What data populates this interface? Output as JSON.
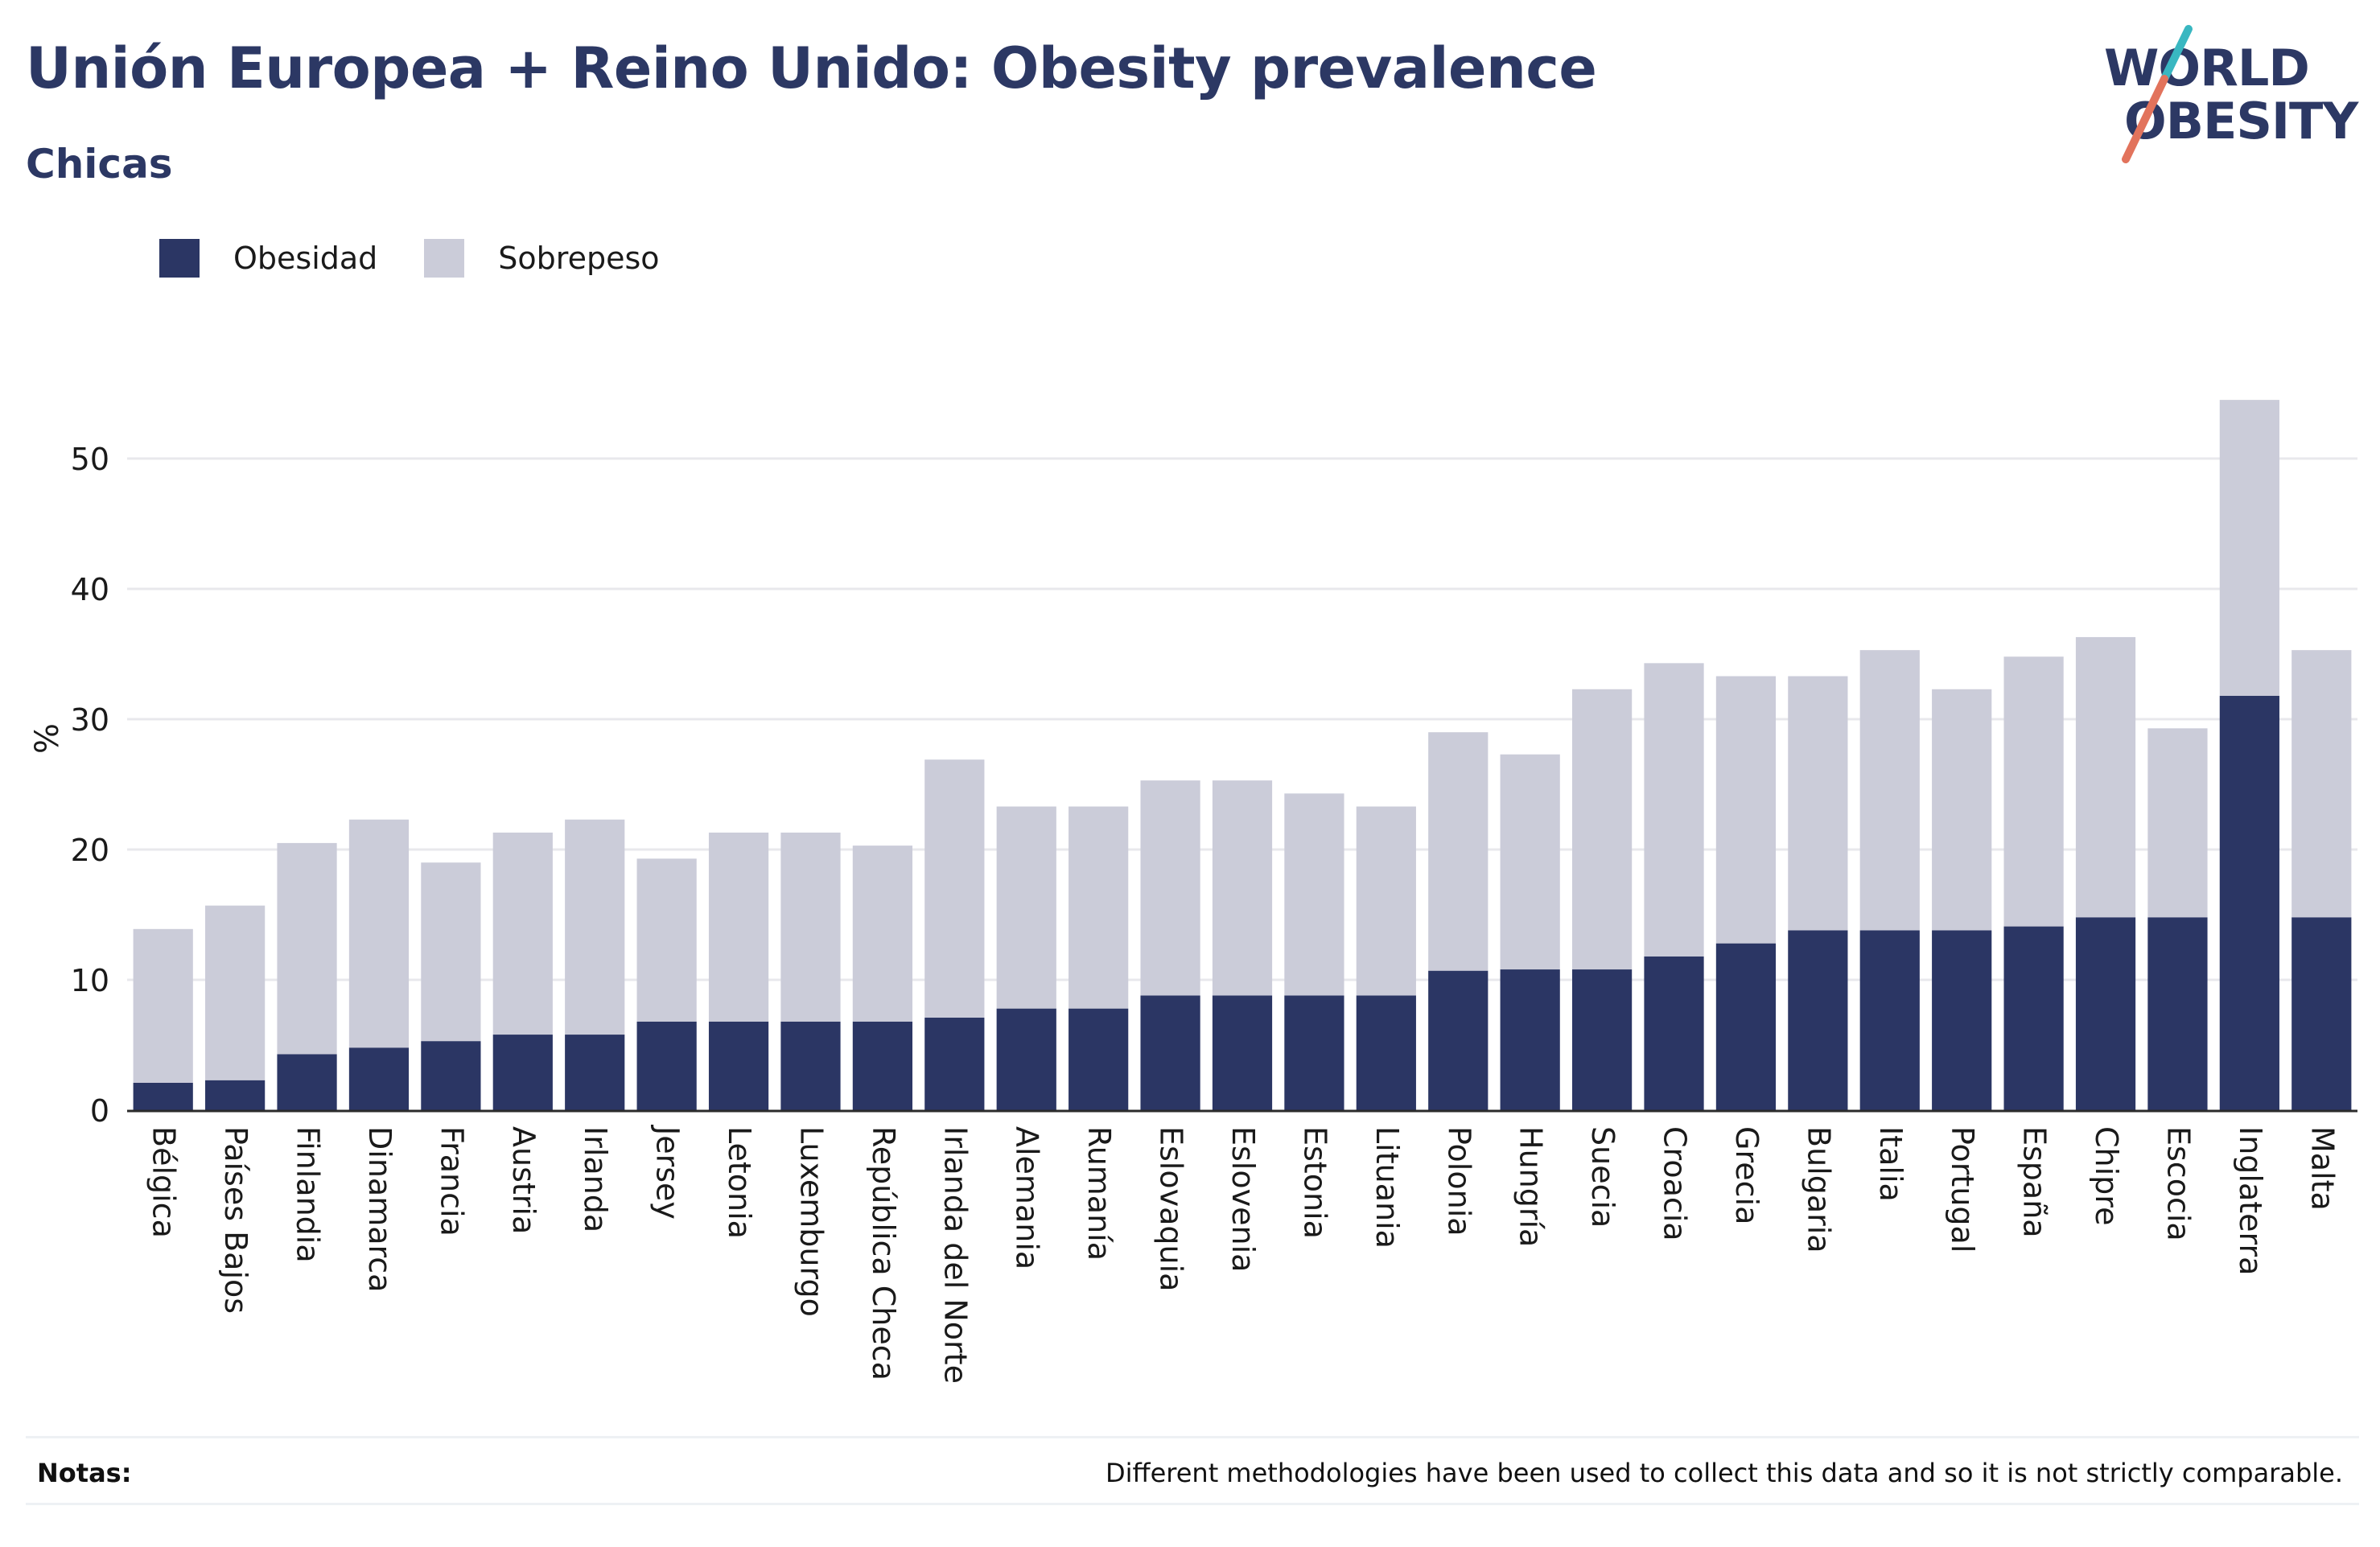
{
  "title": "Unión Europea + Reino Unido: Obesity prevalence",
  "subtitle": "Chicas",
  "logo": {
    "line1": "WORLD",
    "line2": "OBESITY"
  },
  "notes": {
    "label": "Notas:",
    "text": "Different methodologies have been used to collect this data and so it is not strictly comparable."
  },
  "colors": {
    "obesity": "#2b3664",
    "overweight": "#cbccd9",
    "title": "#2c3864",
    "grid": "#e8e8ec",
    "logo_teal": "#39b7c1",
    "logo_coral": "#e2735c"
  },
  "chart_data": {
    "type": "bar",
    "stacked": true,
    "ylabel": "%",
    "xlabel": "",
    "ylim": [
      0,
      55
    ],
    "yticks": [
      0,
      10,
      20,
      30,
      40,
      50
    ],
    "grid": true,
    "legend_position": "top-left",
    "categories": [
      "Bélgica",
      "Países Bajos",
      "Finlandia",
      "Dinamarca",
      "Francia",
      "Austria",
      "Irlanda",
      "Jersey",
      "Letonia",
      "Luxemburgo",
      "República Checa",
      "Irlanda del Norte",
      "Alemania",
      "Rumanía",
      "Eslovaquia",
      "Eslovenia",
      "Estonia",
      "Lituania",
      "Polonia",
      "Hungría",
      "Suecia",
      "Croacia",
      "Grecia",
      "Bulgaria",
      "Italia",
      "Portugal",
      "España",
      "Chipre",
      "Escocia",
      "Inglaterra",
      "Malta"
    ],
    "series": [
      {
        "name": "Obesidad",
        "values": [
          2.1,
          2.3,
          4.3,
          4.8,
          5.3,
          5.8,
          5.8,
          6.8,
          6.8,
          6.8,
          6.8,
          7.1,
          7.8,
          7.8,
          8.8,
          8.8,
          8.8,
          8.8,
          10.7,
          10.8,
          10.8,
          11.8,
          12.8,
          13.8,
          13.8,
          13.8,
          14.1,
          14.8,
          14.8,
          31.8,
          14.8
        ]
      },
      {
        "name": "Sobrepeso",
        "values": [
          11.8,
          13.4,
          16.2,
          17.5,
          13.7,
          15.5,
          16.5,
          12.5,
          14.5,
          14.5,
          13.5,
          19.8,
          15.5,
          15.5,
          16.5,
          16.5,
          15.5,
          14.5,
          18.3,
          16.5,
          21.5,
          22.5,
          20.5,
          19.5,
          21.5,
          18.5,
          20.7,
          21.5,
          14.5,
          22.7,
          20.5
        ]
      }
    ]
  }
}
